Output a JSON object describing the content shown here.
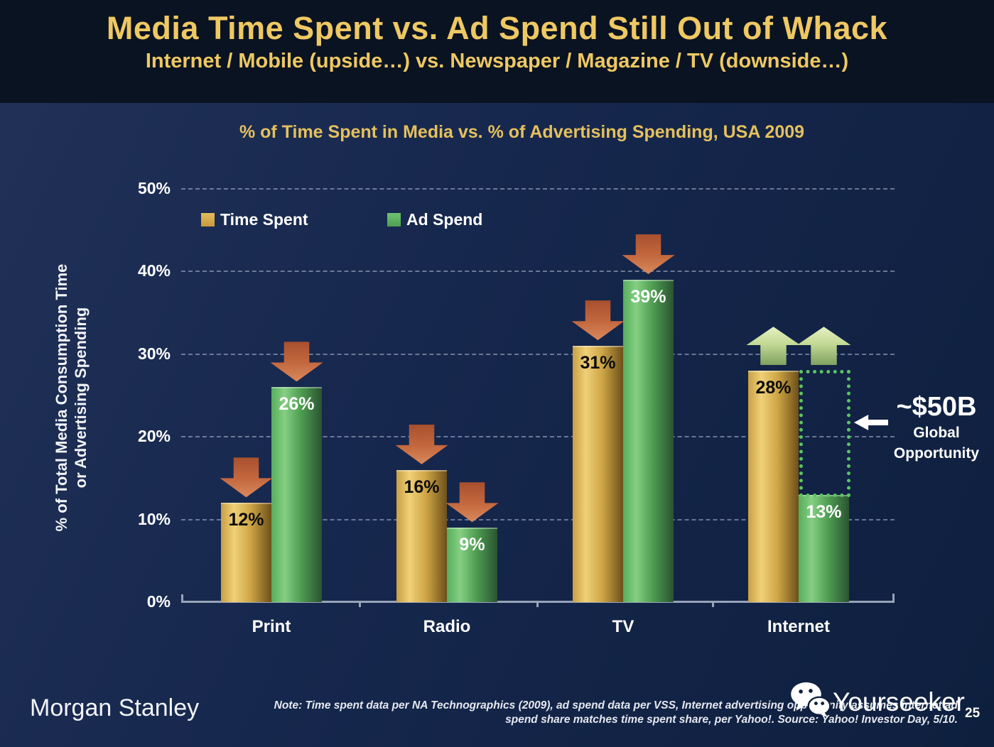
{
  "header": {
    "title": "Media Time Spent vs. Ad Spend Still Out of Whack",
    "subtitle": "Internet / Mobile (upside…) vs. Newspaper / Magazine / TV (downside…)"
  },
  "chart_data": {
    "type": "bar",
    "title": "% of Time Spent in Media vs. % of Advertising Spending, USA 2009",
    "categories": [
      "Print",
      "Radio",
      "TV",
      "Internet"
    ],
    "series": [
      {
        "name": "Time Spent",
        "values": [
          12,
          16,
          31,
          28
        ],
        "color_edge": "#c89f44",
        "color_light": "#f0d078",
        "color_mid": "#cfa646",
        "color_dark": "#6d5019",
        "label_color": "#0b0b0b"
      },
      {
        "name": "Ad Spend",
        "values": [
          26,
          9,
          39,
          13
        ],
        "color_edge": "#58ad5c",
        "color_light": "#85cf83",
        "color_mid": "#4f9e53",
        "color_dark": "#2a5430",
        "label_color": "#ffffff"
      }
    ],
    "value_suffix": "%",
    "ylabel_line1": "% of Total Media Consumption Time",
    "ylabel_line2": "or Advertising Spending",
    "ylim": [
      0,
      50
    ],
    "ytick_step": 10,
    "yticks": [
      "0%",
      "10%",
      "20%",
      "30%",
      "40%",
      "50%"
    ],
    "grid": "dashed-horizontal",
    "legend_position": "top-left",
    "trend_arrows": [
      "down",
      "down",
      "down",
      "up"
    ],
    "annotation": {
      "box": {
        "category": "Internet",
        "series": "Ad Spend",
        "from": 13,
        "to": 28
      },
      "label_value": "~$50B",
      "label_line1": "Global",
      "label_line2": "Opportunity"
    }
  },
  "colors": {
    "title_gold": "#eec862",
    "chart_title_gold": "#e5c05c",
    "bar_gold": "#d2a847",
    "bar_green": "#5cb85c",
    "arrow_down_red": "#c4693f",
    "arrow_up_green": "#c3d995",
    "opportunity_box_green": "#5cc564",
    "header_background": "#0a1322",
    "body_background": "#13244a"
  },
  "footer": {
    "brand": "Morgan Stanley",
    "note_line1": "Note: Time spent data per NA Technographics (2009), ad spend data per VSS, Internet advertising opportunity assumes internet ad",
    "note_line2": "spend share matches time spent share, per Yahoo!. Source: Yahoo! Investor Day, 5/10.",
    "watermark": "Yourseeker",
    "page_number": "25"
  }
}
